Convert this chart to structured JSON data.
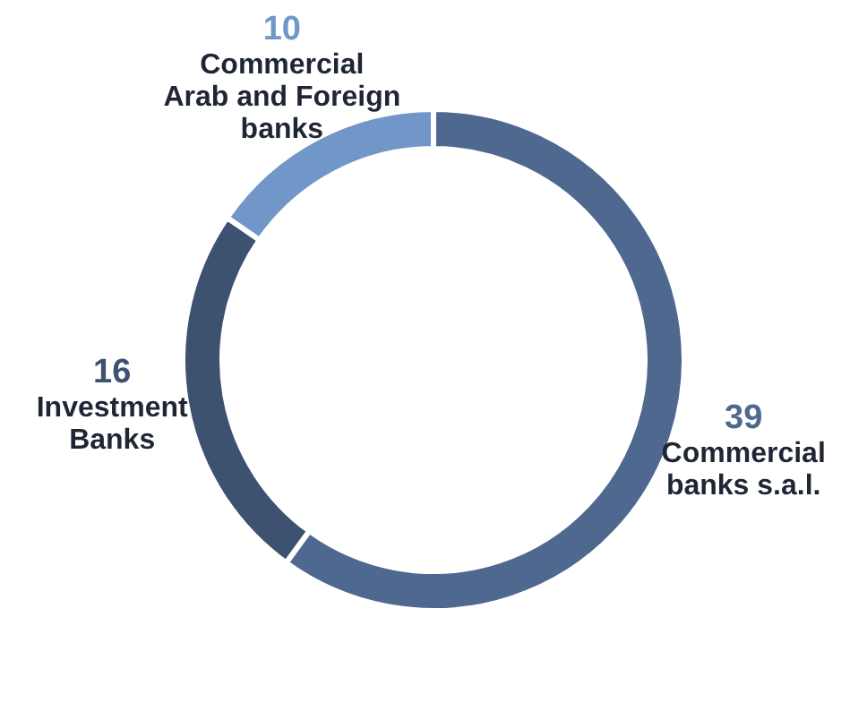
{
  "chart_data": {
    "type": "donut",
    "categories": [
      "Commercial banks s.a.l.",
      "Investment Banks",
      "Commercial Arab and Foreign banks"
    ],
    "values": [
      39,
      16,
      10
    ],
    "colors": [
      "#4e6890",
      "#3d5170",
      "#7196c8"
    ],
    "legend": false,
    "data_labels": true
  }
}
